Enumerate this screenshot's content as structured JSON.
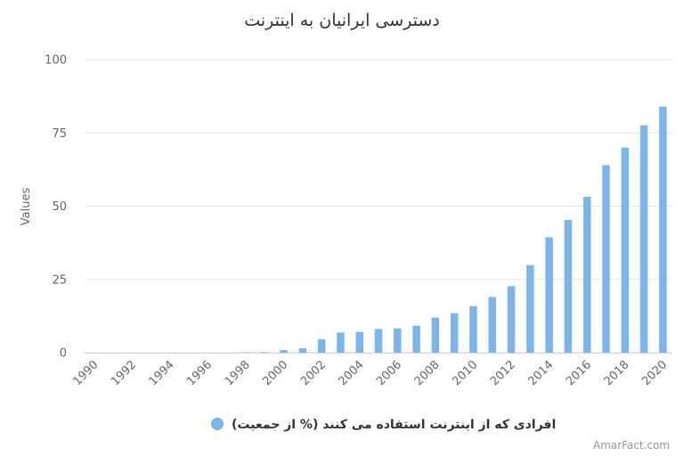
{
  "chart_data": {
    "type": "bar",
    "title": "دسترسی ایرانیان به اینترنت",
    "ylabel": "Values",
    "ylim": [
      0,
      100
    ],
    "yticks": [
      0,
      25,
      50,
      75,
      100
    ],
    "x": [
      1990,
      1991,
      1992,
      1993,
      1994,
      1995,
      1996,
      1997,
      1998,
      1999,
      2000,
      2001,
      2002,
      2003,
      2004,
      2005,
      2006,
      2007,
      2008,
      2009,
      2010,
      2011,
      2012,
      2013,
      2014,
      2015,
      2016,
      2017,
      2018,
      2019,
      2020
    ],
    "xtick_labels": [
      "1990",
      "1992",
      "1994",
      "1996",
      "1998",
      "2000",
      "2002",
      "2004",
      "2006",
      "2008",
      "2010",
      "2012",
      "2014",
      "2016",
      "2018",
      "2020"
    ],
    "series": [
      {
        "name": "افرادی که از اینترنت استفاده می کنند (% از جمعیت)",
        "values": [
          0,
          0,
          0,
          0,
          0,
          0,
          0,
          0,
          0.1,
          0.2,
          0.9,
          1.5,
          4.6,
          6.9,
          7.1,
          8.1,
          8.3,
          9.2,
          12.0,
          13.5,
          15.9,
          19.0,
          22.7,
          29.9,
          39.4,
          45.3,
          53.2,
          64.0,
          70.0,
          77.6,
          84.0
        ]
      }
    ],
    "grid": true,
    "legend_position": "bottom",
    "colors": {
      "bar": "#7cb5ec",
      "grid": "#e6e6e6",
      "axis": "#ccd6eb",
      "text": "#666666"
    },
    "credit": "AmarFact.com"
  }
}
